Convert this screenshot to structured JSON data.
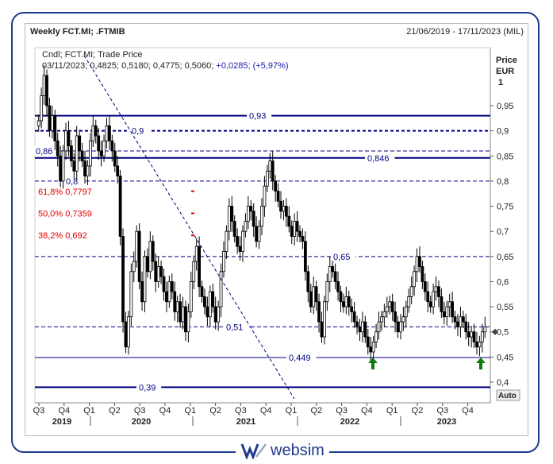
{
  "header": {
    "title": "Weekly FCT.MI; .FTMIB",
    "date_range": "21/06/2019 - 17/11/2023 (MIL)"
  },
  "info": {
    "line1": "Cndl; FCT.MI; Trade Price",
    "line2_prefix": "03/11/2023; 0,4825; 0,5180; 0,4775; 0,5060;",
    "line2_change": "+0,0285; (+5,97%)"
  },
  "axis": {
    "price_label": "Price",
    "currency_label": "EUR",
    "scale_label": "1",
    "auto_button": "Auto"
  },
  "branding": {
    "logo_text": "websim"
  },
  "colors": {
    "candle": "#000000",
    "level_line": "#000080",
    "fib_text": "#e00000",
    "arrow": "#0c7a0c",
    "frame": "#1f3a8f",
    "change_text": "#1a1aa8"
  },
  "chart_data": {
    "type": "candlestick",
    "title": "Weekly FCT.MI; .FTMIB",
    "ylabel": "Price EUR",
    "ylim": [
      0.39,
      1.0
    ],
    "y_ticks": [
      "0,4",
      "0,45",
      "0,5",
      "0,55",
      "0,6",
      "0,65",
      "0,7",
      "0,75",
      "0,8",
      "0,85",
      "0,9",
      "0,95"
    ],
    "last_price_label": "0,5",
    "quarter_ticks": [
      "Q3",
      "Q4",
      "Q1",
      "Q2",
      "Q3",
      "Q4",
      "Q1",
      "Q2",
      "Q3",
      "Q4",
      "Q1",
      "Q2",
      "Q3",
      "Q4",
      "Q1",
      "Q2",
      "Q3",
      "Q4"
    ],
    "year_labels": [
      "2019",
      "2020",
      "2021",
      "2022",
      "2023"
    ],
    "levels": [
      {
        "label": "0,93",
        "value": 0.93,
        "style": "solid-thick"
      },
      {
        "label": "0,9",
        "value": 0.9,
        "style": "dashed-thick"
      },
      {
        "label": "0,86",
        "value": 0.86,
        "style": "dashed"
      },
      {
        "label": "0,846",
        "value": 0.846,
        "style": "solid-thick"
      },
      {
        "label": "0,8",
        "value": 0.8,
        "style": "dashed"
      },
      {
        "label": "0,65",
        "value": 0.65,
        "style": "dashed"
      },
      {
        "label": "0,51",
        "value": 0.51,
        "style": "dashed"
      },
      {
        "label": "0,449",
        "value": 0.449,
        "style": "solid"
      },
      {
        "label": "0,39",
        "value": 0.39,
        "style": "solid-thick"
      }
    ],
    "fibonacci": [
      {
        "label": "61,8% 0,7797",
        "value": 0.7797
      },
      {
        "label": "50,0% 0,7359",
        "value": 0.7359
      },
      {
        "label": "38,2% 0,692",
        "value": 0.692
      }
    ],
    "trendline": {
      "from": [
        "2019-06",
        1.05
      ],
      "to": [
        "2021-12",
        0.38
      ]
    },
    "arrows": [
      {
        "date": "2022-10",
        "value": 0.45
      },
      {
        "date": "2023-10",
        "value": 0.45
      }
    ],
    "series": [
      {
        "values": [
          0.92,
          0.97,
          1.01,
          0.95,
          0.9,
          0.93,
          0.88,
          0.85,
          0.8,
          0.86,
          0.9,
          0.87,
          0.84,
          0.82,
          0.89,
          0.86,
          0.84,
          0.81,
          0.83,
          0.88,
          0.91,
          0.89,
          0.86,
          0.85,
          0.88,
          0.91,
          0.88,
          0.86,
          0.83,
          0.81,
          0.69,
          0.52,
          0.47,
          0.53,
          0.62,
          0.64,
          0.7,
          0.6,
          0.56,
          0.65,
          0.62,
          0.68,
          0.64,
          0.6,
          0.63,
          0.61,
          0.58,
          0.56,
          0.6,
          0.58,
          0.54,
          0.56,
          0.52,
          0.55,
          0.5,
          0.54,
          0.6,
          0.64,
          0.67,
          0.59,
          0.57,
          0.55,
          0.53,
          0.58,
          0.55,
          0.52,
          0.55,
          0.62,
          0.66,
          0.7,
          0.75,
          0.72,
          0.69,
          0.67,
          0.66,
          0.7,
          0.72,
          0.75,
          0.74,
          0.71,
          0.68,
          0.71,
          0.75,
          0.79,
          0.82,
          0.84,
          0.8,
          0.78,
          0.76,
          0.74,
          0.75,
          0.73,
          0.71,
          0.69,
          0.72,
          0.7,
          0.69,
          0.68,
          0.62,
          0.58,
          0.55,
          0.59,
          0.56,
          0.52,
          0.49,
          0.56,
          0.6,
          0.63,
          0.62,
          0.6,
          0.58,
          0.56,
          0.55,
          0.57,
          0.55,
          0.54,
          0.52,
          0.51,
          0.5,
          0.52,
          0.49,
          0.47,
          0.46,
          0.48,
          0.5,
          0.52,
          0.53,
          0.54,
          0.55,
          0.56,
          0.54,
          0.52,
          0.5,
          0.52,
          0.53,
          0.55,
          0.57,
          0.59,
          0.62,
          0.65,
          0.63,
          0.6,
          0.58,
          0.56,
          0.55,
          0.58,
          0.59,
          0.57,
          0.54,
          0.53,
          0.55,
          0.56,
          0.53,
          0.52,
          0.51,
          0.53,
          0.52,
          0.5,
          0.49,
          0.5,
          0.48,
          0.47,
          0.48,
          0.5,
          0.51
        ]
      }
    ]
  }
}
